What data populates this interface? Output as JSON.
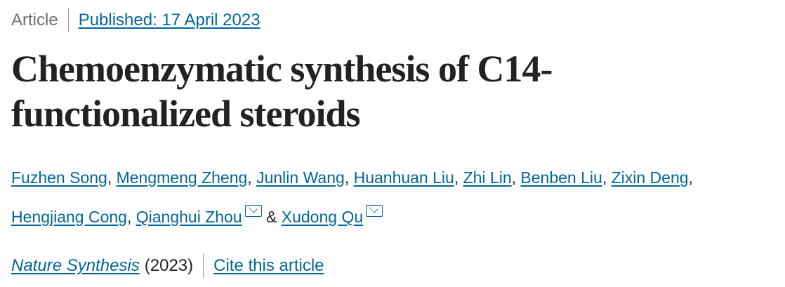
{
  "header": {
    "article_type": "Article",
    "published": "Published: 17 April 2023"
  },
  "title": "Chemoenzymatic synthesis of C14-functionalized steroids",
  "authors": [
    {
      "name": "Fuzhen Song",
      "corresponding": false
    },
    {
      "name": "Mengmeng Zheng",
      "corresponding": false
    },
    {
      "name": "Junlin Wang",
      "corresponding": false
    },
    {
      "name": "Huanhuan Liu",
      "corresponding": false
    },
    {
      "name": "Zhi Lin",
      "corresponding": false
    },
    {
      "name": "Benben Liu",
      "corresponding": false
    },
    {
      "name": "Zixin Deng",
      "corresponding": false
    },
    {
      "name": "Hengjiang Cong",
      "corresponding": false
    },
    {
      "name": "Qianghui Zhou",
      "corresponding": true
    },
    {
      "name": "Xudong Qu",
      "corresponding": true
    }
  ],
  "author_separator": ", ",
  "author_last_separator": " & ",
  "journal": {
    "name": "Nature Synthesis",
    "year": "(2023)",
    "cite_label": "Cite this article"
  },
  "colors": {
    "link": "#006699",
    "text": "#222222",
    "muted": "#6f6f6f"
  }
}
